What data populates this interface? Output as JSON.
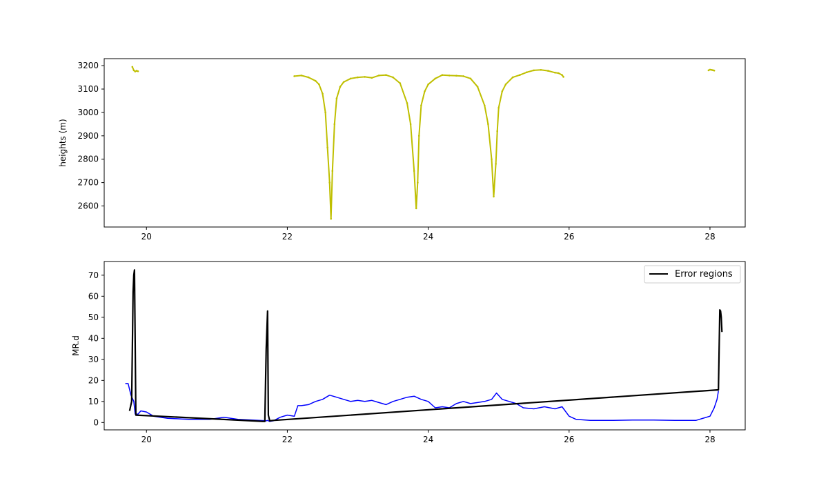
{
  "chart_data": [
    {
      "type": "scatter",
      "title": "",
      "xlabel": "",
      "ylabel": "heights (m)",
      "xlim": [
        19.4,
        28.5
      ],
      "ylim": [
        2510,
        3230
      ],
      "xticks": [
        "20",
        "22",
        "24",
        "26",
        "28"
      ],
      "yticks": [
        "2600",
        "2700",
        "2800",
        "2900",
        "3000",
        "3100",
        "3200"
      ],
      "grid": false,
      "series": [
        {
          "color": "#bfbf00",
          "x": [
            19.8,
            19.82,
            19.84,
            19.86,
            19.88,
            22.1,
            22.2,
            22.3,
            22.4,
            22.45,
            22.5,
            22.54,
            22.57,
            22.6,
            22.62,
            22.64,
            22.67,
            22.7,
            22.75,
            22.8,
            22.9,
            23.0,
            23.1,
            23.2,
            23.3,
            23.4,
            23.5,
            23.6,
            23.7,
            23.75,
            23.8,
            23.83,
            23.85,
            23.87,
            23.9,
            23.95,
            24.0,
            24.1,
            24.2,
            24.3,
            24.4,
            24.5,
            24.6,
            24.7,
            24.8,
            24.85,
            24.9,
            24.93,
            24.96,
            24.98,
            25.0,
            25.05,
            25.1,
            25.2,
            25.3,
            25.4,
            25.5,
            25.6,
            25.7,
            25.8,
            25.85,
            25.9,
            25.92,
            27.98,
            28.0,
            28.02,
            28.04,
            28.06
          ],
          "y": [
            3195,
            3180,
            3175,
            3178,
            3176,
            3155,
            3158,
            3150,
            3135,
            3120,
            3080,
            3000,
            2850,
            2700,
            2545,
            2750,
            2950,
            3060,
            3110,
            3130,
            3145,
            3150,
            3152,
            3148,
            3158,
            3160,
            3150,
            3125,
            3040,
            2950,
            2750,
            2590,
            2700,
            2900,
            3030,
            3090,
            3120,
            3145,
            3160,
            3158,
            3157,
            3155,
            3145,
            3110,
            3030,
            2950,
            2800,
            2640,
            2780,
            2920,
            3020,
            3090,
            3120,
            3150,
            3160,
            3172,
            3180,
            3182,
            3178,
            3170,
            3168,
            3160,
            3152,
            3180,
            3183,
            3182,
            3181,
            3179
          ]
        }
      ]
    },
    {
      "type": "line",
      "title": "",
      "xlabel": "",
      "ylabel": "MR.d",
      "xlim": [
        19.4,
        28.5
      ],
      "ylim": [
        -3.5,
        76.5
      ],
      "xticks": [
        "20",
        "22",
        "24",
        "26",
        "28"
      ],
      "yticks": [
        "0",
        "10",
        "20",
        "30",
        "40",
        "50",
        "60",
        "70"
      ],
      "grid": false,
      "legend": "upper-right",
      "series": [
        {
          "color": "#0000ff",
          "x": [
            19.7,
            19.74,
            19.78,
            19.82,
            19.84,
            19.88,
            19.92,
            20.0,
            20.1,
            20.3,
            20.6,
            20.9,
            21.1,
            21.3,
            21.6,
            21.7,
            21.72,
            21.75,
            21.8,
            21.9,
            22.0,
            22.1,
            22.15,
            22.2,
            22.3,
            22.4,
            22.5,
            22.6,
            22.7,
            22.8,
            22.9,
            23.0,
            23.1,
            23.2,
            23.3,
            23.4,
            23.5,
            23.6,
            23.7,
            23.8,
            23.9,
            24.0,
            24.1,
            24.2,
            24.3,
            24.4,
            24.5,
            24.6,
            24.7,
            24.8,
            24.9,
            24.97,
            25.05,
            25.15,
            25.25,
            25.35,
            25.5,
            25.65,
            25.8,
            25.9,
            26.0,
            26.1,
            26.3,
            26.6,
            26.9,
            27.2,
            27.5,
            27.8,
            28.0,
            28.06,
            28.1,
            28.12
          ],
          "y": [
            18.5,
            18.5,
            13,
            10,
            4,
            4,
            5.5,
            5,
            3,
            2,
            1.5,
            1.5,
            2.5,
            1.5,
            1,
            0.8,
            1,
            0.5,
            0.8,
            2.5,
            3.5,
            3,
            8,
            8,
            8.5,
            10,
            11,
            13,
            12,
            11,
            10,
            10.5,
            10,
            10.5,
            9.5,
            8.5,
            10,
            11,
            12,
            12.5,
            11,
            10,
            7,
            7.5,
            7,
            9,
            10,
            9,
            9.5,
            10,
            11,
            14,
            11,
            10,
            9,
            7,
            6.5,
            7.5,
            6.5,
            7.5,
            3,
            1.5,
            1,
            1,
            1.2,
            1.2,
            1,
            1,
            3,
            7,
            11,
            15
          ]
        },
        {
          "name": "Error regions",
          "color": "#000000",
          "x": [
            19.76,
            19.79,
            19.81,
            19.82,
            19.83,
            19.85,
            21.68,
            21.7,
            21.72,
            21.73,
            21.75,
            21.8,
            28.12,
            28.14,
            28.15,
            28.16,
            28.17
          ],
          "y": [
            5.5,
            10,
            62,
            70,
            72.5,
            3.5,
            0.5,
            35,
            53,
            3.5,
            0.8,
            1,
            15.5,
            53.5,
            53,
            50,
            43
          ]
        }
      ]
    }
  ]
}
